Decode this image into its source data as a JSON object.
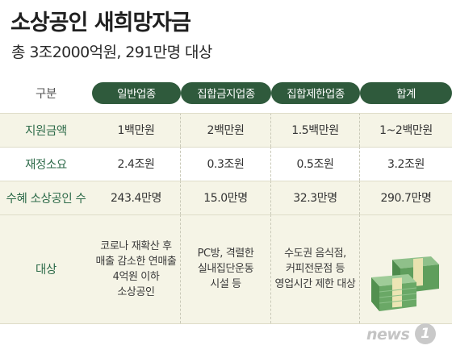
{
  "title": "소상공인 새희망자금",
  "subtitle": "총 3조2000억원, 291만명 대상",
  "table": {
    "header": {
      "label": "구분",
      "columns": [
        "일반업종",
        "집합금지업종",
        "집합제한업종",
        "합계"
      ]
    },
    "rows": [
      {
        "label": "지원금액",
        "values": [
          "1백만원",
          "2백만원",
          "1.5백만원",
          "1~2백만원"
        ]
      },
      {
        "label": "재정소요",
        "values": [
          "2.4조원",
          "0.3조원",
          "0.5조원",
          "3.2조원"
        ]
      },
      {
        "label": "수혜 소상공인 수",
        "values": [
          "243.4만명",
          "15.0만명",
          "32.3만명",
          "290.7만명"
        ]
      }
    ],
    "target": {
      "label": "대상",
      "col1": [
        "코로나 재확산 후",
        "매출 감소한 연매출",
        "4억원 이하",
        "소상공인"
      ],
      "col2": [
        "PC방, 격렬한",
        "실내집단운동",
        "시설 등"
      ],
      "col3": [
        "수도권 음식점,",
        "커피전문점 등",
        "영업시간 제한 대상"
      ]
    }
  },
  "logo": {
    "text": "news",
    "badge": "1"
  },
  "colors": {
    "pill": "#2f5a3c",
    "row_alt": "#f5f4e6",
    "label": "#2e6b4a"
  }
}
